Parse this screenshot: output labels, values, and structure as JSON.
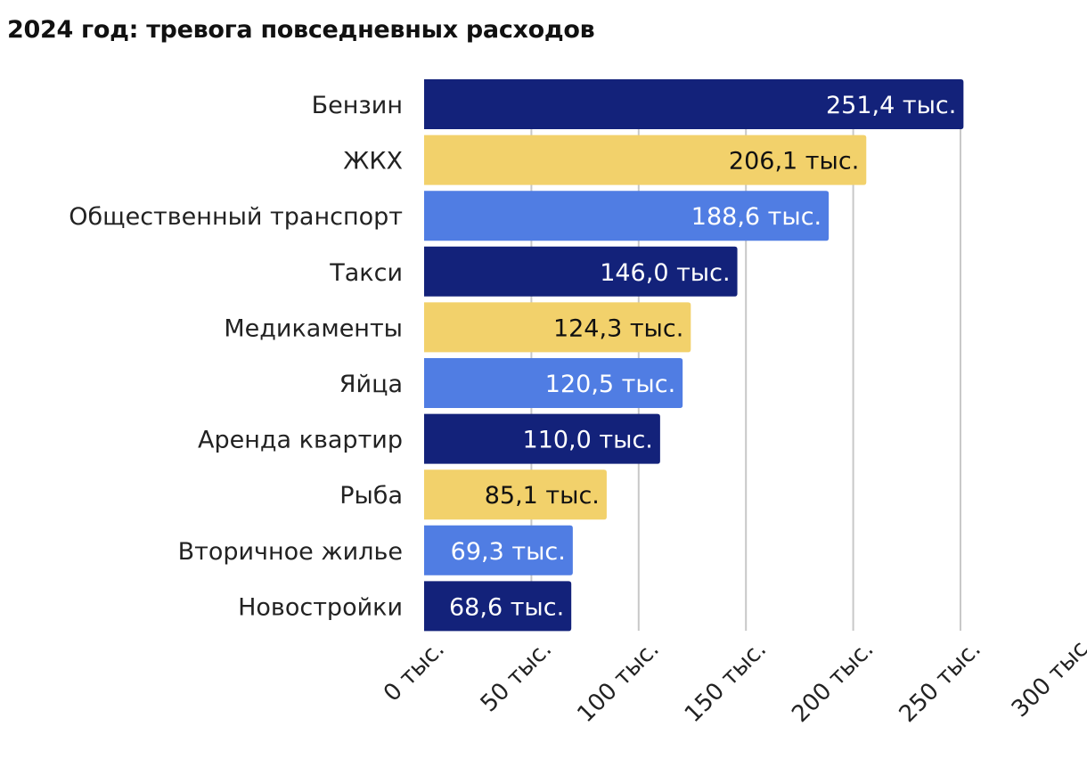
{
  "chart_data": {
    "type": "bar",
    "orientation": "horizontal",
    "title": "2024 год: тревога повседневных расходов",
    "categories": [
      "Бензин",
      "ЖКХ",
      "Общественный транспорт",
      "Такси",
      "Медикаменты",
      "Яйца",
      "Аренда квартир",
      "Рыба",
      "Вторичное жилье",
      "Новостройки"
    ],
    "values": [
      251.4,
      206.1,
      188.6,
      146.0,
      124.3,
      120.5,
      110.0,
      85.1,
      69.3,
      68.6
    ],
    "data_labels": [
      "251,4 тыс.",
      "206,1 тыс.",
      "188,6 тыс.",
      "146,0 тыс.",
      "124,3 тыс.",
      "120,5 тыс.",
      "110,0 тыс.",
      "85,1 тыс.",
      "69,3 тыс.",
      "68,6 тыс."
    ],
    "bar_colors": [
      "#13227a",
      "#f2d16b",
      "#507de3",
      "#13227a",
      "#f2d16b",
      "#507de3",
      "#13227a",
      "#f2d16b",
      "#507de3",
      "#13227a"
    ],
    "label_colors": [
      "#ffffff",
      "#111111",
      "#ffffff",
      "#ffffff",
      "#111111",
      "#ffffff",
      "#ffffff",
      "#111111",
      "#ffffff",
      "#ffffff"
    ],
    "xticks": [
      0,
      50,
      100,
      150,
      200,
      250,
      300
    ],
    "xtick_labels": [
      "0 тыс.",
      "50 тыс.",
      "100 тыс.",
      "150 тыс.",
      "200 тыс.",
      "250 тыс.",
      "300 тыс"
    ],
    "xlim": [
      0,
      300
    ],
    "grid": "vertical",
    "gridline_color": "#c8c8c8",
    "xlabel": "",
    "ylabel": ""
  }
}
